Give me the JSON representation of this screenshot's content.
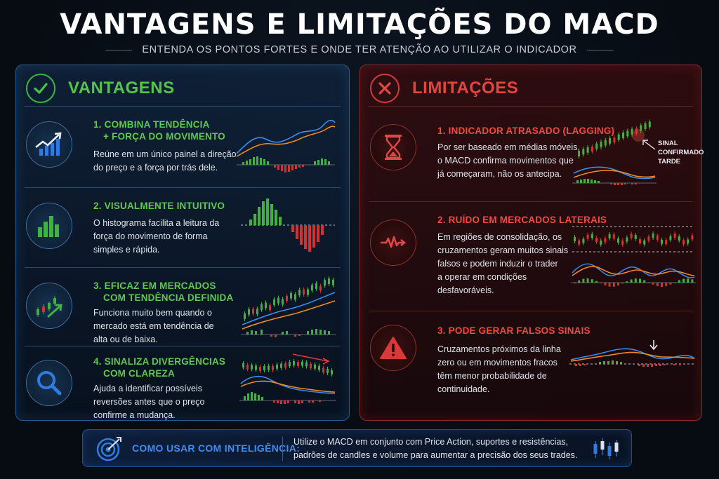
{
  "header": {
    "title": "VANTAGENS E LIMITAÇÕES DO MACD",
    "subtitle": "ENTENDA OS PONTOS FORTES E ONDE TER ATENÇÃO AO UTILIZAR O INDICADOR"
  },
  "advantages": {
    "title": "VANTAGENS",
    "icon": "check-icon",
    "items": [
      {
        "num": "1.",
        "title_line1": "COMBINA TENDÊNCIA",
        "title_line2": "+ FORÇA DO MOVIMENTO",
        "desc_lines": [
          "Reúne em um único painel a direção",
          "do preço e a força por trás dele."
        ],
        "icon": "trend-arrow-bars-icon"
      },
      {
        "num": "2.",
        "title_line1": "VISUALMENTE INTUITIVO",
        "title_line2": "",
        "desc_lines": [
          "O histograma facilita a leitura da",
          "força do movimento de forma",
          "simples e rápida."
        ],
        "icon": "histogram-bars-icon"
      },
      {
        "num": "3.",
        "title_line1": "EFICAZ EM MERCADOS",
        "title_line2": "COM TENDÊNCIA DEFINIDA",
        "desc_lines": [
          "Funciona muito bem quando o",
          "mercado está em tendência de",
          "alta ou de baixa."
        ],
        "icon": "candles-uptrend-icon"
      },
      {
        "num": "4.",
        "title_line1": "SINALIZA DIVERGÊNCIAS",
        "title_line2": "COM CLAREZA",
        "desc_lines": [
          "Ajuda a identificar possíveis",
          "reversões antes que o preço",
          "confirme a mudança."
        ],
        "icon": "magnifier-icon"
      }
    ]
  },
  "limitations": {
    "title": "LIMITAÇÕES",
    "icon": "x-icon",
    "items": [
      {
        "num": "1.",
        "title_line1": "INDICADOR ATRASADO (LAGGING)",
        "desc_lines": [
          "Por ser baseado em médias móveis,",
          "o MACD confirma movimentos que",
          "já começaram, não os antecipa."
        ],
        "icon": "hourglass-icon",
        "annotation": [
          "SINAL",
          "CONFIRMADO",
          "TARDE"
        ]
      },
      {
        "num": "2.",
        "title_line1": "RUÍDO EM MERCADOS LATERAIS",
        "desc_lines": [
          "Em regiões de consolidação, os",
          "cruzamentos geram muitos sinais",
          "falsos e podem induzir o trader",
          "a operar em condições",
          "desfavoráveis."
        ],
        "icon": "noise-wave-icon"
      },
      {
        "num": "3.",
        "title_line1": "PODE GERAR FALSOS SINAIS",
        "desc_lines": [
          "Cruzamentos próximos da linha",
          "zero ou em movimentos fracos",
          "têm menor probabilidade de",
          "continuidade."
        ],
        "icon": "warning-triangle-icon"
      }
    ]
  },
  "footer": {
    "label": "COMO USAR COM INTELIGÊNCIA:",
    "text_lines": [
      "Utilize o MACD em conjunto com Price Action, suportes e resistências,",
      "padrões de candles e volume para aumentar a precisão dos seus trades."
    ],
    "icon": "target-arrow-icon",
    "right_icon": "candles-icon"
  },
  "colors": {
    "green": "#55c44a",
    "red": "#e5453f",
    "blue": "#3f8cf0",
    "orange": "#f08a24",
    "macd_blue": "#3a8cf0"
  }
}
